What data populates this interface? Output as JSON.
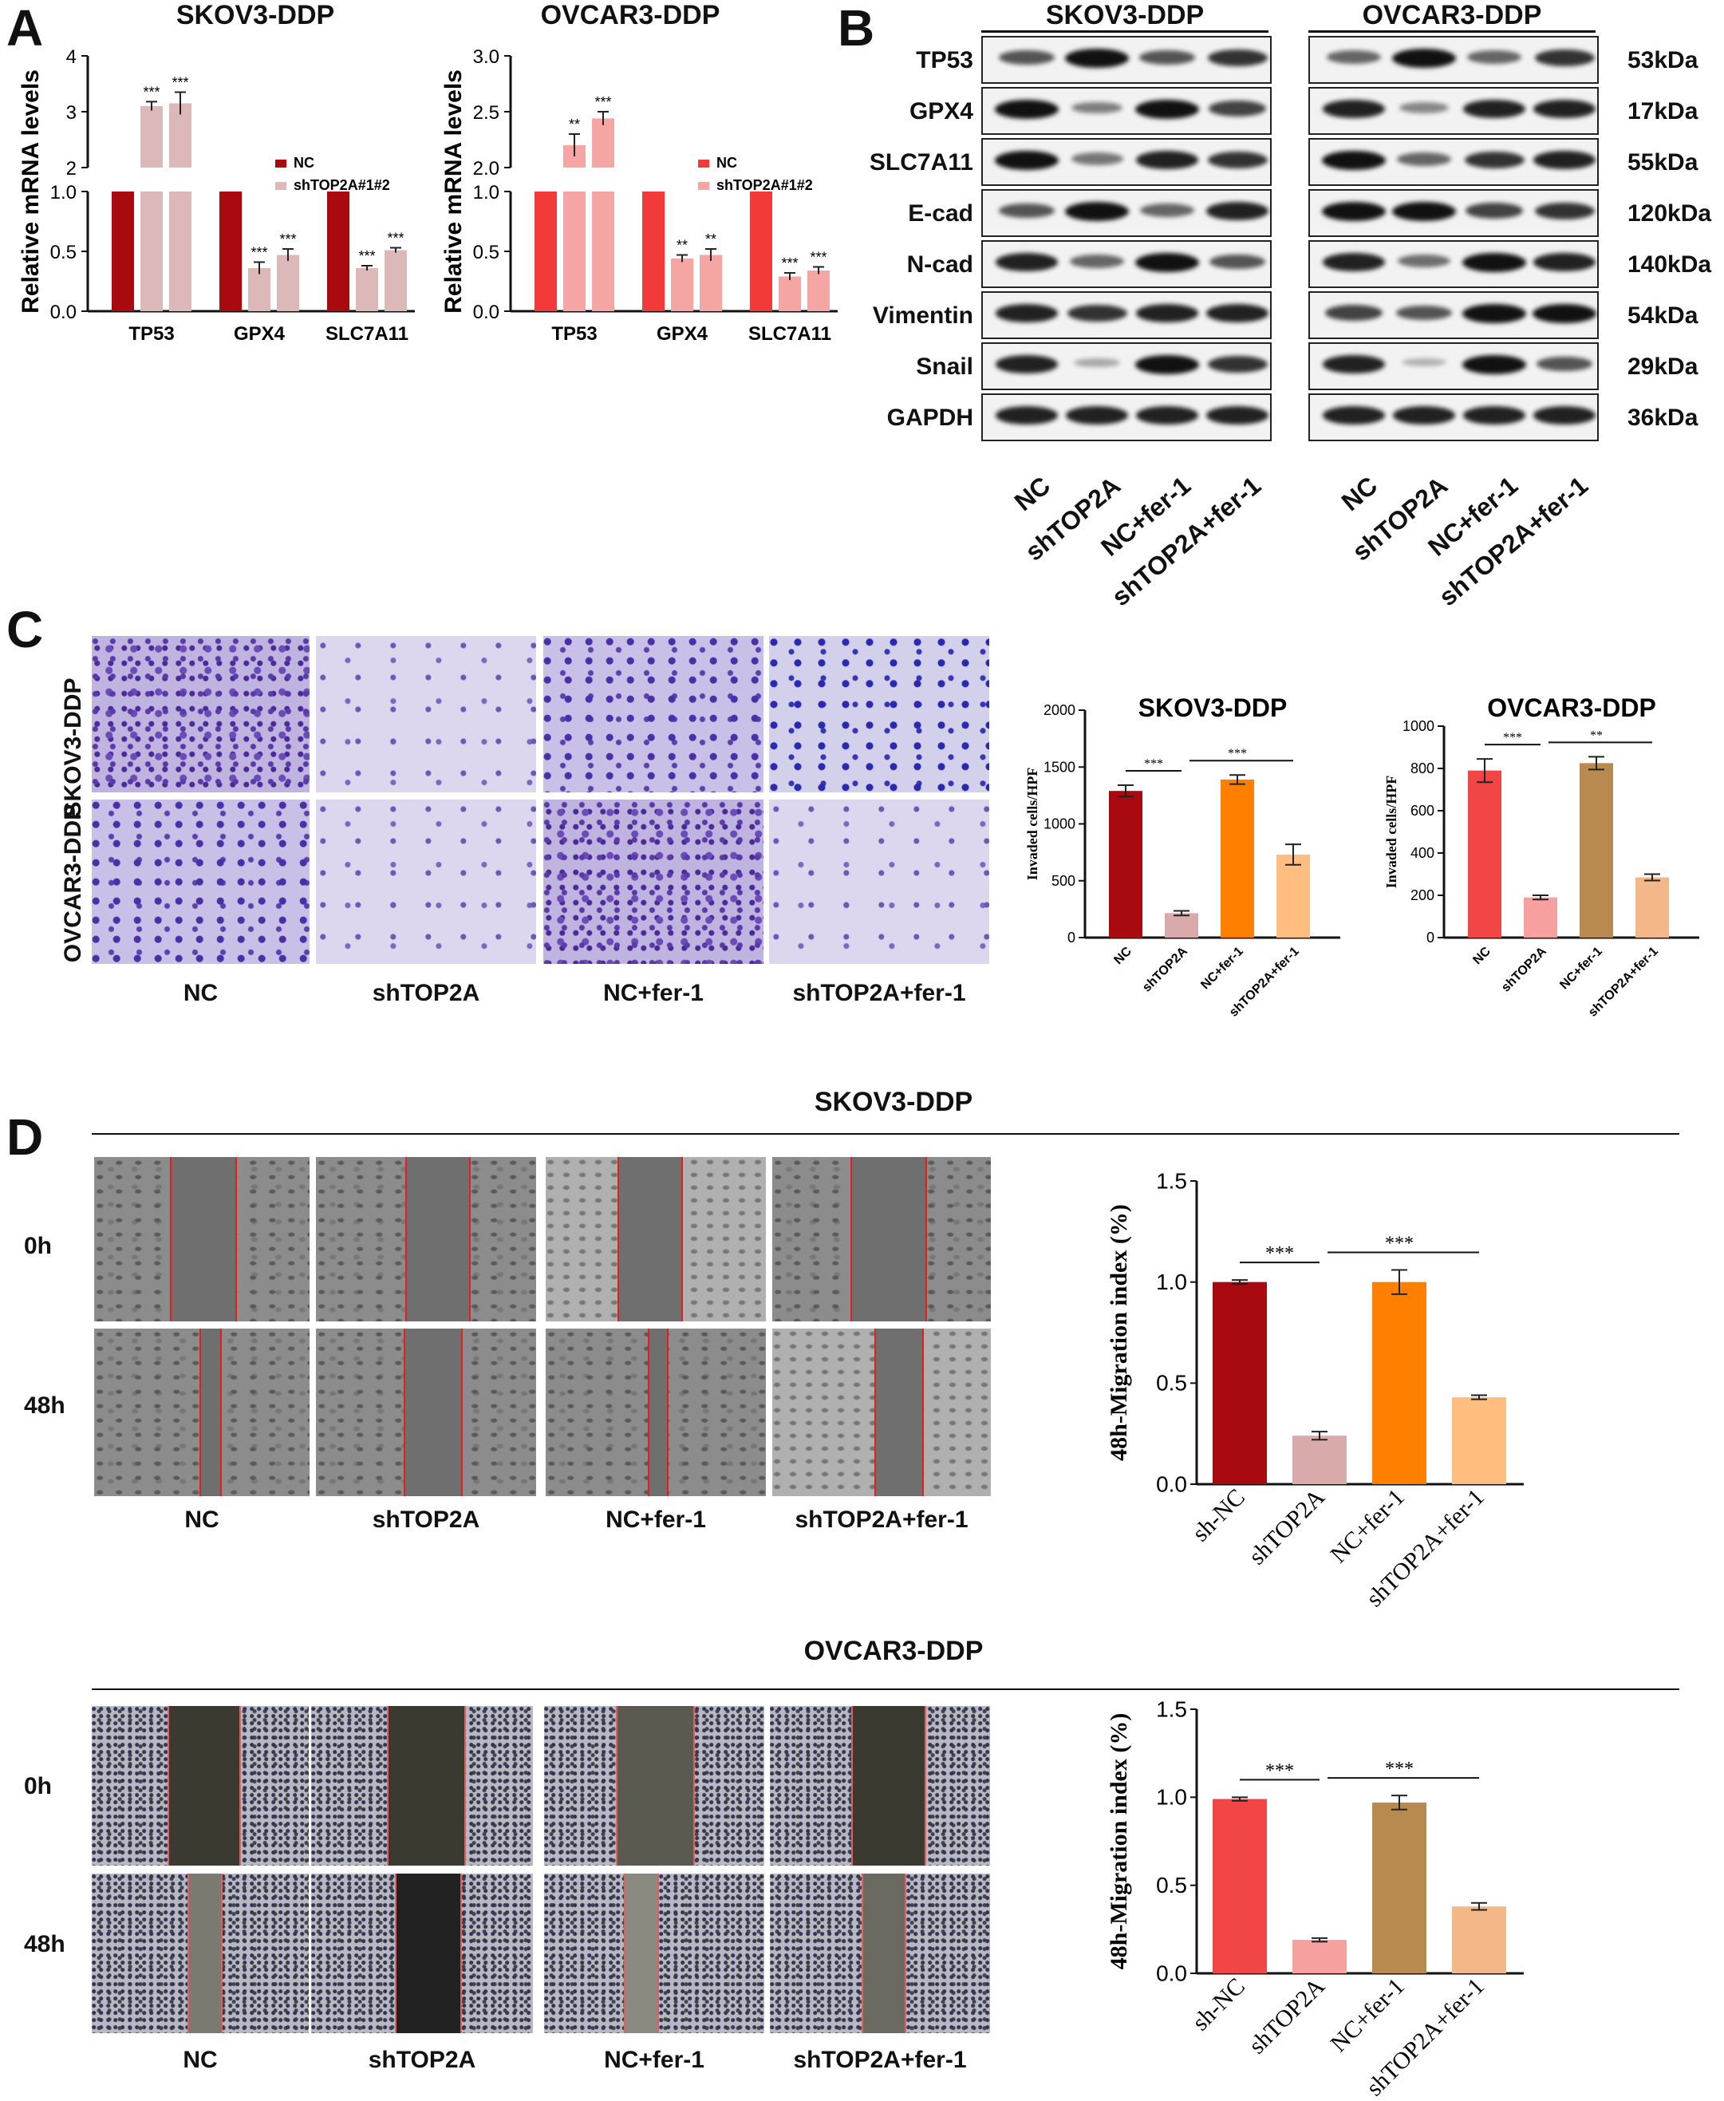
{
  "panels": {
    "a": "A",
    "b": "B",
    "c": "C",
    "d": "D"
  },
  "panelA": {
    "skov": {
      "title": "SKOV3-DDP",
      "ylabel": "Relative mRNA levels",
      "legend": [
        "NC",
        "shTOP2A#1#2"
      ],
      "colors": [
        "#a80a10",
        "#dcb8b8"
      ],
      "yticks_upper": [
        "2",
        "3",
        "4"
      ],
      "yticks_lower": [
        "0.0",
        "0.5",
        "1.0"
      ]
    },
    "ovcar": {
      "title": "OVCAR3-DDP",
      "ylabel": "Relative mRNA levels",
      "legend": [
        "NC",
        "shTOP2A#1#2"
      ],
      "colors": [
        "#f23a3a",
        "#f6a5a5"
      ],
      "yticks_upper": [
        "2.0",
        "2.5",
        "3.0"
      ],
      "yticks_lower": [
        "0.0",
        "0.5",
        "1.0"
      ]
    }
  },
  "panelB": {
    "headers": [
      "SKOV3-DDP",
      "OVCAR3-DDP"
    ],
    "proteins": [
      "TP53",
      "GPX4",
      "SLC7A11",
      "E-cad",
      "N-cad",
      "Vimentin",
      "Snail",
      "GAPDH"
    ],
    "kda": [
      "53kDa",
      "17kDa",
      "55kDa",
      "120kDa",
      "140kDa",
      "54kDa",
      "29kDa",
      "36kDa"
    ],
    "lanes": [
      "NC",
      "shTOP2A",
      "NC+fer-1",
      "shTOP2A+fer-1"
    ]
  },
  "panelC": {
    "row_labels": [
      "SKOV3-DDP",
      "OVCAR3-DDP"
    ],
    "col_labels": [
      "NC",
      "shTOP2A",
      "NC+fer-1",
      "shTOP2A+fer-1"
    ]
  },
  "panelD": {
    "skov_title": "SKOV3-DDP",
    "ovcar_title": "OVCAR3-DDP",
    "time_labels": [
      "0h",
      "48h"
    ],
    "col_labels": [
      "NC",
      "shTOP2A",
      "NC+fer-1",
      "shTOP2A+fer-1"
    ]
  },
  "chart_data": [
    {
      "type": "bar",
      "title": "SKOV3-DDP",
      "ylabel": "Relative mRNA levels",
      "categories": [
        "TP53",
        "GPX4",
        "SLC7A11"
      ],
      "axis_break": [
        1.0,
        2.0
      ],
      "series": [
        {
          "name": "NC",
          "values": [
            1.0,
            1.0,
            1.0
          ]
        },
        {
          "name": "shTOP2A#1",
          "values": [
            3.1,
            0.36,
            0.36
          ]
        },
        {
          "name": "shTOP2A#2",
          "values": [
            3.15,
            0.47,
            0.51
          ]
        }
      ],
      "errors": [
        [
          0,
          0,
          0
        ],
        [
          0.08,
          0.05,
          0.02
        ],
        [
          0.2,
          0.05,
          0.02
        ]
      ],
      "significance": [
        [
          "",
          "",
          ""
        ],
        [
          "***",
          "***",
          "***"
        ],
        [
          "***",
          "***",
          "***"
        ]
      ]
    },
    {
      "type": "bar",
      "title": "OVCAR3-DDP",
      "ylabel": "Relative mRNA levels",
      "categories": [
        "TP53",
        "GPX4",
        "SLC7A11"
      ],
      "axis_break": [
        1.0,
        2.0
      ],
      "series": [
        {
          "name": "NC",
          "values": [
            1.0,
            1.0,
            1.0
          ]
        },
        {
          "name": "shTOP2A#1",
          "values": [
            2.2,
            0.44,
            0.29
          ]
        },
        {
          "name": "shTOP2A#2",
          "values": [
            2.44,
            0.47,
            0.34
          ]
        }
      ],
      "errors": [
        [
          0,
          0,
          0
        ],
        [
          0.1,
          0.03,
          0.03
        ],
        [
          0.06,
          0.05,
          0.03
        ]
      ],
      "significance": [
        [
          "",
          "",
          ""
        ],
        [
          "**",
          "**",
          "***"
        ],
        [
          "***",
          "**",
          "***"
        ]
      ]
    },
    {
      "type": "bar",
      "title": "SKOV3-DDP",
      "ylabel": "Invaded cells/HPF",
      "categories": [
        "NC",
        "shTOP2A",
        "NC+fer-1",
        "shTOP2A+fer-1"
      ],
      "values": [
        1290,
        215,
        1390,
        730
      ],
      "errors": [
        50,
        20,
        40,
        90
      ],
      "colors": [
        "#a80a10",
        "#d8aaaa",
        "#ff8000",
        "#ffbe80"
      ],
      "ylim": [
        0,
        2000
      ],
      "yticks": [
        "0",
        "500",
        "1000",
        "1500",
        "2000"
      ],
      "brackets": [
        "***",
        "***"
      ]
    },
    {
      "type": "bar",
      "title": "OVCAR3-DDP",
      "ylabel": "Invaded cells/HPF",
      "categories": [
        "NC",
        "shTOP2A",
        "NC+fer-1",
        "shTOP2A+fer-1"
      ],
      "values": [
        790,
        190,
        825,
        285
      ],
      "errors": [
        55,
        10,
        30,
        15
      ],
      "colors": [
        "#f24646",
        "#f6a0a0",
        "#b88a50",
        "#f4b888"
      ],
      "ylim": [
        0,
        1000
      ],
      "yticks": [
        "0",
        "200",
        "400",
        "600",
        "800",
        "1000"
      ],
      "brackets": [
        "***",
        "**"
      ]
    },
    {
      "type": "bar",
      "title": "",
      "ylabel": "48h-Migration index (%)",
      "categories": [
        "sh-NC",
        "shTOP2A",
        "NC+fer-1",
        "shTOP2A+fer-1"
      ],
      "values": [
        1.0,
        0.24,
        1.0,
        0.43
      ],
      "errors": [
        0.01,
        0.02,
        0.06,
        0.01
      ],
      "colors": [
        "#a80a10",
        "#d8aaaa",
        "#ff8000",
        "#ffbe80"
      ],
      "ylim": [
        0,
        1.5
      ],
      "yticks": [
        "0.0",
        "0.5",
        "1.0",
        "1.5"
      ],
      "brackets": [
        "***",
        "***"
      ]
    },
    {
      "type": "bar",
      "title": "",
      "ylabel": "48h-Migration index (%)",
      "categories": [
        "sh-NC",
        "shTOP2A",
        "NC+fer-1",
        "shTOP2A+fer-1"
      ],
      "values": [
        0.99,
        0.19,
        0.97,
        0.38
      ],
      "errors": [
        0.01,
        0.01,
        0.04,
        0.02
      ],
      "colors": [
        "#f24646",
        "#f6a0a0",
        "#b88a50",
        "#f4b888"
      ],
      "ylim": [
        0,
        1.5
      ],
      "yticks": [
        "0.0",
        "0.5",
        "1.0",
        "1.5"
      ],
      "brackets": [
        "***",
        "***"
      ]
    }
  ]
}
